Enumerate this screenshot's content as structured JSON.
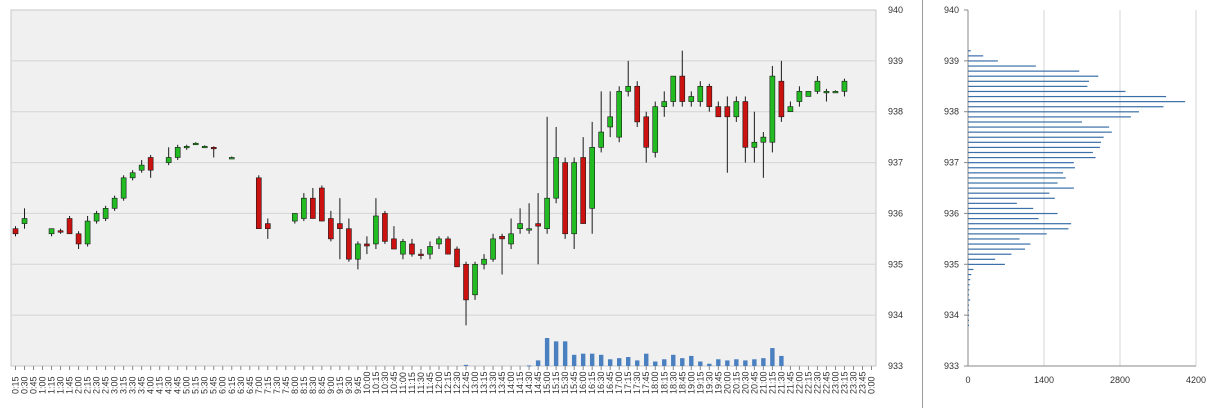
{
  "colors": {
    "up": "#22bb22",
    "down": "#cc1111",
    "volume": "#4a7fc0",
    "profile": "#3a6fa8",
    "plot_bg": "#f0f0f0",
    "grid": "#d4d4d4"
  },
  "chart_data": [
    {
      "type": "candlestick",
      "title": "",
      "xlabel": "",
      "ylabel": "",
      "ylim": [
        933,
        940
      ],
      "y_ticks": [
        "933",
        "934",
        "935",
        "936",
        "937",
        "938",
        "939",
        "940"
      ],
      "grid": true,
      "x_tick_labels": [
        "0:15",
        "0:30",
        "0:45",
        "1:00",
        "1:15",
        "1:30",
        "1:45",
        "2:00",
        "2:15",
        "2:30",
        "2:45",
        "3:00",
        "3:15",
        "3:30",
        "3:45",
        "4:00",
        "4:15",
        "4:30",
        "4:45",
        "5:00",
        "5:15",
        "5:30",
        "5:45",
        "6:00",
        "6:15",
        "6:30",
        "6:45",
        "7:00",
        "7:15",
        "7:30",
        "7:45",
        "8:00",
        "8:15",
        "8:30",
        "8:45",
        "9:00",
        "9:15",
        "9:30",
        "9:45",
        "10:00",
        "10:15",
        "10:30",
        "10:45",
        "11:00",
        "11:15",
        "11:30",
        "11:45",
        "12:00",
        "12:15",
        "12:30",
        "12:45",
        "13:00",
        "13:15",
        "13:30",
        "13:45",
        "14:00",
        "14:15",
        "14:30",
        "14:45",
        "15:00",
        "15:15",
        "15:30",
        "15:45",
        "16:00",
        "16:15",
        "16:30",
        "16:45",
        "17:00",
        "17:15",
        "17:30",
        "17:45",
        "18:00",
        "18:15",
        "18:30",
        "18:45",
        "19:00",
        "19:15",
        "19:30",
        "19:45",
        "20:00",
        "20:15",
        "20:30",
        "20:45",
        "21:00",
        "21:15",
        "21:30",
        "21:45",
        "22:00",
        "22:15",
        "22:30",
        "22:45",
        "23:00",
        "23:15",
        "23:30",
        "23:45",
        "0:00"
      ],
      "candles": [
        {
          "slot": 0,
          "o": 935.7,
          "h": 935.75,
          "l": 935.55,
          "c": 935.6
        },
        {
          "slot": 1,
          "o": 935.8,
          "h": 936.1,
          "l": 935.7,
          "c": 935.9
        },
        {
          "slot": 4,
          "o": 935.6,
          "h": 935.7,
          "l": 935.55,
          "c": 935.7
        },
        {
          "slot": 5,
          "o": 935.66,
          "h": 935.7,
          "l": 935.6,
          "c": 935.64
        },
        {
          "slot": 6,
          "o": 935.9,
          "h": 935.95,
          "l": 935.6,
          "c": 935.6
        },
        {
          "slot": 7,
          "o": 935.6,
          "h": 935.65,
          "l": 935.3,
          "c": 935.4
        },
        {
          "slot": 8,
          "o": 935.4,
          "h": 935.95,
          "l": 935.35,
          "c": 935.85
        },
        {
          "slot": 9,
          "o": 935.85,
          "h": 936.05,
          "l": 935.8,
          "c": 936.0
        },
        {
          "slot": 10,
          "o": 935.9,
          "h": 936.15,
          "l": 935.85,
          "c": 936.1
        },
        {
          "slot": 11,
          "o": 936.1,
          "h": 936.35,
          "l": 936.05,
          "c": 936.3
        },
        {
          "slot": 12,
          "o": 936.3,
          "h": 936.75,
          "l": 936.25,
          "c": 936.7
        },
        {
          "slot": 13,
          "o": 936.7,
          "h": 936.85,
          "l": 936.65,
          "c": 936.8
        },
        {
          "slot": 14,
          "o": 936.85,
          "h": 937.05,
          "l": 936.8,
          "c": 936.95
        },
        {
          "slot": 15,
          "o": 937.1,
          "h": 937.15,
          "l": 936.7,
          "c": 936.85
        },
        {
          "slot": 17,
          "o": 937.0,
          "h": 937.3,
          "l": 936.95,
          "c": 937.1
        },
        {
          "slot": 18,
          "o": 937.1,
          "h": 937.35,
          "l": 937.05,
          "c": 937.3
        },
        {
          "slot": 19,
          "o": 937.3,
          "h": 937.35,
          "l": 937.25,
          "c": 937.32
        },
        {
          "slot": 20,
          "o": 937.38,
          "h": 937.4,
          "l": 937.36,
          "c": 937.38
        },
        {
          "slot": 21,
          "o": 937.32,
          "h": 937.34,
          "l": 937.3,
          "c": 937.32
        },
        {
          "slot": 22,
          "o": 937.3,
          "h": 937.32,
          "l": 937.1,
          "c": 937.28
        },
        {
          "slot": 24,
          "o": 937.1,
          "h": 937.12,
          "l": 937.08,
          "c": 937.1
        },
        {
          "slot": 27,
          "o": 936.7,
          "h": 936.75,
          "l": 935.7,
          "c": 935.7
        },
        {
          "slot": 28,
          "o": 935.8,
          "h": 935.9,
          "l": 935.5,
          "c": 935.7
        },
        {
          "slot": 31,
          "o": 935.85,
          "h": 936.0,
          "l": 935.8,
          "c": 936.0
        },
        {
          "slot": 32,
          "o": 935.9,
          "h": 936.4,
          "l": 935.85,
          "c": 936.3
        },
        {
          "slot": 33,
          "o": 936.3,
          "h": 936.5,
          "l": 935.9,
          "c": 935.9
        },
        {
          "slot": 34,
          "o": 936.5,
          "h": 936.55,
          "l": 935.85,
          "c": 935.85
        },
        {
          "slot": 35,
          "o": 935.9,
          "h": 936.05,
          "l": 935.45,
          "c": 935.5
        },
        {
          "slot": 36,
          "o": 935.8,
          "h": 936.3,
          "l": 935.1,
          "c": 935.7
        },
        {
          "slot": 37,
          "o": 935.7,
          "h": 935.9,
          "l": 935.05,
          "c": 935.1
        },
        {
          "slot": 38,
          "o": 935.1,
          "h": 935.45,
          "l": 934.9,
          "c": 935.4
        },
        {
          "slot": 39,
          "o": 935.4,
          "h": 935.55,
          "l": 935.2,
          "c": 935.36
        },
        {
          "slot": 40,
          "o": 935.4,
          "h": 936.3,
          "l": 935.3,
          "c": 935.95
        },
        {
          "slot": 41,
          "o": 936.0,
          "h": 936.05,
          "l": 935.4,
          "c": 935.45
        },
        {
          "slot": 42,
          "o": 935.5,
          "h": 935.75,
          "l": 935.3,
          "c": 935.3
        },
        {
          "slot": 43,
          "o": 935.2,
          "h": 935.5,
          "l": 935.1,
          "c": 935.45
        },
        {
          "slot": 44,
          "o": 935.4,
          "h": 935.5,
          "l": 935.15,
          "c": 935.2
        },
        {
          "slot": 45,
          "o": 935.2,
          "h": 935.3,
          "l": 935.1,
          "c": 935.18
        },
        {
          "slot": 46,
          "o": 935.2,
          "h": 935.45,
          "l": 935.1,
          "c": 935.35
        },
        {
          "slot": 47,
          "o": 935.4,
          "h": 935.55,
          "l": 935.3,
          "c": 935.5
        },
        {
          "slot": 48,
          "o": 935.5,
          "h": 935.55,
          "l": 935.2,
          "c": 935.2
        },
        {
          "slot": 49,
          "o": 935.3,
          "h": 935.35,
          "l": 934.95,
          "c": 934.95
        },
        {
          "slot": 50,
          "o": 935.0,
          "h": 935.05,
          "l": 933.8,
          "c": 934.3
        },
        {
          "slot": 51,
          "o": 934.4,
          "h": 935.05,
          "l": 934.3,
          "c": 935.0
        },
        {
          "slot": 52,
          "o": 935.0,
          "h": 935.2,
          "l": 934.9,
          "c": 935.1
        },
        {
          "slot": 53,
          "o": 935.1,
          "h": 935.6,
          "l": 935.05,
          "c": 935.5
        },
        {
          "slot": 54,
          "o": 935.55,
          "h": 935.6,
          "l": 934.8,
          "c": 935.5
        },
        {
          "slot": 55,
          "o": 935.4,
          "h": 935.9,
          "l": 935.3,
          "c": 935.6
        },
        {
          "slot": 56,
          "o": 935.7,
          "h": 936.1,
          "l": 935.6,
          "c": 935.8
        },
        {
          "slot": 57,
          "o": 935.7,
          "h": 936.2,
          "l": 935.6,
          "c": 935.7
        },
        {
          "slot": 58,
          "o": 935.8,
          "h": 936.4,
          "l": 935.0,
          "c": 935.75
        },
        {
          "slot": 59,
          "o": 935.7,
          "h": 937.9,
          "l": 935.6,
          "c": 936.3
        },
        {
          "slot": 60,
          "o": 936.3,
          "h": 937.7,
          "l": 936.2,
          "c": 937.1
        },
        {
          "slot": 61,
          "o": 937.0,
          "h": 937.1,
          "l": 935.5,
          "c": 935.6
        },
        {
          "slot": 62,
          "o": 935.6,
          "h": 937.1,
          "l": 935.3,
          "c": 937.0
        },
        {
          "slot": 63,
          "o": 937.1,
          "h": 937.5,
          "l": 935.8,
          "c": 935.8
        },
        {
          "slot": 64,
          "o": 936.1,
          "h": 937.8,
          "l": 935.6,
          "c": 937.3
        },
        {
          "slot": 65,
          "o": 937.3,
          "h": 938.4,
          "l": 937.2,
          "c": 937.6
        },
        {
          "slot": 66,
          "o": 937.7,
          "h": 938.4,
          "l": 937.5,
          "c": 937.9
        },
        {
          "slot": 67,
          "o": 937.5,
          "h": 938.5,
          "l": 937.4,
          "c": 938.4
        },
        {
          "slot": 68,
          "o": 938.4,
          "h": 939.0,
          "l": 938.3,
          "c": 938.5
        },
        {
          "slot": 69,
          "o": 938.5,
          "h": 938.6,
          "l": 937.7,
          "c": 937.8
        },
        {
          "slot": 70,
          "o": 937.9,
          "h": 938.0,
          "l": 937.0,
          "c": 937.3
        },
        {
          "slot": 71,
          "o": 937.2,
          "h": 938.2,
          "l": 937.1,
          "c": 938.1
        },
        {
          "slot": 72,
          "o": 938.1,
          "h": 938.4,
          "l": 937.9,
          "c": 938.2
        },
        {
          "slot": 73,
          "o": 938.2,
          "h": 938.7,
          "l": 938.1,
          "c": 938.7
        },
        {
          "slot": 74,
          "o": 938.7,
          "h": 939.2,
          "l": 938.1,
          "c": 938.2
        },
        {
          "slot": 75,
          "o": 938.2,
          "h": 938.4,
          "l": 938.1,
          "c": 938.3
        },
        {
          "slot": 76,
          "o": 938.2,
          "h": 938.6,
          "l": 938.1,
          "c": 938.5
        },
        {
          "slot": 77,
          "o": 938.5,
          "h": 938.55,
          "l": 938.0,
          "c": 938.1
        },
        {
          "slot": 78,
          "o": 938.1,
          "h": 938.2,
          "l": 937.9,
          "c": 937.9
        },
        {
          "slot": 79,
          "o": 938.1,
          "h": 938.3,
          "l": 936.8,
          "c": 937.9
        },
        {
          "slot": 80,
          "o": 937.9,
          "h": 938.3,
          "l": 937.8,
          "c": 938.2
        },
        {
          "slot": 81,
          "o": 938.2,
          "h": 938.3,
          "l": 937.0,
          "c": 937.3
        },
        {
          "slot": 82,
          "o": 937.3,
          "h": 938.0,
          "l": 937.0,
          "c": 937.4
        },
        {
          "slot": 83,
          "o": 937.4,
          "h": 937.6,
          "l": 936.7,
          "c": 937.5
        },
        {
          "slot": 84,
          "o": 937.4,
          "h": 938.9,
          "l": 937.2,
          "c": 938.7
        },
        {
          "slot": 85,
          "o": 938.6,
          "h": 939.0,
          "l": 937.8,
          "c": 937.9
        },
        {
          "slot": 86,
          "o": 938.0,
          "h": 938.2,
          "l": 938.0,
          "c": 938.1
        },
        {
          "slot": 87,
          "o": 938.2,
          "h": 938.5,
          "l": 938.1,
          "c": 938.4
        },
        {
          "slot": 88,
          "o": 938.3,
          "h": 938.4,
          "l": 938.3,
          "c": 938.4
        },
        {
          "slot": 89,
          "o": 938.4,
          "h": 938.7,
          "l": 938.35,
          "c": 938.6
        },
        {
          "slot": 90,
          "o": 938.4,
          "h": 938.45,
          "l": 938.2,
          "c": 938.4
        },
        {
          "slot": 91,
          "o": 938.4,
          "h": 938.42,
          "l": 938.38,
          "c": 938.4
        },
        {
          "slot": 92,
          "o": 938.4,
          "h": 938.65,
          "l": 938.3,
          "c": 938.6
        }
      ],
      "volume_bars": [
        {
          "slot": 50,
          "value": 4
        },
        {
          "slot": 57,
          "value": 2
        },
        {
          "slot": 58,
          "value": 20
        },
        {
          "slot": 59,
          "value": 100
        },
        {
          "slot": 60,
          "value": 88
        },
        {
          "slot": 61,
          "value": 88
        },
        {
          "slot": 62,
          "value": 40
        },
        {
          "slot": 63,
          "value": 44
        },
        {
          "slot": 64,
          "value": 44
        },
        {
          "slot": 65,
          "value": 40
        },
        {
          "slot": 66,
          "value": 24
        },
        {
          "slot": 67,
          "value": 28
        },
        {
          "slot": 68,
          "value": 32
        },
        {
          "slot": 69,
          "value": 20
        },
        {
          "slot": 70,
          "value": 44
        },
        {
          "slot": 71,
          "value": 16
        },
        {
          "slot": 72,
          "value": 24
        },
        {
          "slot": 73,
          "value": 40
        },
        {
          "slot": 74,
          "value": 28
        },
        {
          "slot": 75,
          "value": 36
        },
        {
          "slot": 76,
          "value": 16
        },
        {
          "slot": 77,
          "value": 8
        },
        {
          "slot": 78,
          "value": 24
        },
        {
          "slot": 79,
          "value": 20
        },
        {
          "slot": 80,
          "value": 24
        },
        {
          "slot": 81,
          "value": 20
        },
        {
          "slot": 82,
          "value": 24
        },
        {
          "slot": 83,
          "value": 28
        },
        {
          "slot": 84,
          "value": 64
        },
        {
          "slot": 85,
          "value": 36
        }
      ]
    },
    {
      "type": "bar",
      "orientation": "horizontal",
      "title": "",
      "xlabel": "",
      "ylabel": "",
      "xlim": [
        0,
        4200
      ],
      "x_ticks": [
        "0",
        "1400",
        "2800",
        "4200"
      ],
      "ylim": [
        933,
        940
      ],
      "y_ticks": [
        "933",
        "934",
        "935",
        "936",
        "937",
        "938",
        "939",
        "940"
      ],
      "grid": true,
      "bars": [
        {
          "price": 939.2,
          "value": 50
        },
        {
          "price": 939.1,
          "value": 280
        },
        {
          "price": 939.0,
          "value": 550
        },
        {
          "price": 938.9,
          "value": 1250
        },
        {
          "price": 938.8,
          "value": 2050
        },
        {
          "price": 938.7,
          "value": 2400
        },
        {
          "price": 938.6,
          "value": 2230
        },
        {
          "price": 938.5,
          "value": 2200
        },
        {
          "price": 938.4,
          "value": 2900
        },
        {
          "price": 938.3,
          "value": 3650
        },
        {
          "price": 938.2,
          "value": 4000
        },
        {
          "price": 938.1,
          "value": 3600
        },
        {
          "price": 938.0,
          "value": 3150
        },
        {
          "price": 937.9,
          "value": 3000
        },
        {
          "price": 937.8,
          "value": 2100
        },
        {
          "price": 937.7,
          "value": 2600
        },
        {
          "price": 937.6,
          "value": 2650
        },
        {
          "price": 937.5,
          "value": 2500
        },
        {
          "price": 937.4,
          "value": 2450
        },
        {
          "price": 937.3,
          "value": 2430
        },
        {
          "price": 937.2,
          "value": 2300
        },
        {
          "price": 937.1,
          "value": 2350
        },
        {
          "price": 937.0,
          "value": 1950
        },
        {
          "price": 936.9,
          "value": 1970
        },
        {
          "price": 936.8,
          "value": 1750
        },
        {
          "price": 936.7,
          "value": 1800
        },
        {
          "price": 936.6,
          "value": 1650
        },
        {
          "price": 936.5,
          "value": 1950
        },
        {
          "price": 936.4,
          "value": 1500
        },
        {
          "price": 936.3,
          "value": 1600
        },
        {
          "price": 936.2,
          "value": 900
        },
        {
          "price": 936.1,
          "value": 1200
        },
        {
          "price": 936.0,
          "value": 1650
        },
        {
          "price": 935.9,
          "value": 1300
        },
        {
          "price": 935.8,
          "value": 1900
        },
        {
          "price": 935.7,
          "value": 1850
        },
        {
          "price": 935.6,
          "value": 1450
        },
        {
          "price": 935.5,
          "value": 950
        },
        {
          "price": 935.4,
          "value": 1150
        },
        {
          "price": 935.3,
          "value": 1050
        },
        {
          "price": 935.2,
          "value": 800
        },
        {
          "price": 935.1,
          "value": 500
        },
        {
          "price": 935.0,
          "value": 680
        },
        {
          "price": 934.9,
          "value": 100
        },
        {
          "price": 934.8,
          "value": 60
        },
        {
          "price": 934.7,
          "value": 40
        },
        {
          "price": 934.6,
          "value": 30
        },
        {
          "price": 934.5,
          "value": 25
        },
        {
          "price": 934.4,
          "value": 20
        },
        {
          "price": 934.3,
          "value": 40
        },
        {
          "price": 934.2,
          "value": 15
        },
        {
          "price": 934.1,
          "value": 15
        },
        {
          "price": 934.0,
          "value": 15
        },
        {
          "price": 933.9,
          "value": 10
        },
        {
          "price": 933.8,
          "value": 10
        }
      ]
    }
  ]
}
